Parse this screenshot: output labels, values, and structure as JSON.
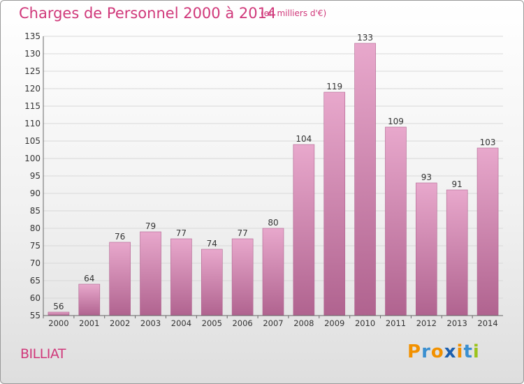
{
  "header": {
    "title": "Charges de Personnel 2000 à 2014",
    "subtitle": "(en milliers d'€)"
  },
  "footer": {
    "commune": "BILLIAT",
    "logo_text": "Proxiti",
    "logo_letters": [
      "P",
      "r",
      "o",
      "x",
      "i",
      "t",
      "i"
    ],
    "logo_colors": [
      "#f29100",
      "#3a8fd0",
      "#f29100",
      "#1c5fae",
      "#f29100",
      "#3a8fd0",
      "#9bc31c"
    ]
  },
  "colors": {
    "accent": "#d0387a",
    "bar_top": "#e8a8cc",
    "bar_bottom": "#b0638f",
    "grid": "#d8d8d8"
  },
  "chart_data": {
    "type": "bar",
    "title": "Charges de Personnel 2000 à 2014",
    "subtitle": "(en milliers d'€)",
    "categories": [
      "2000",
      "2001",
      "2002",
      "2003",
      "2004",
      "2005",
      "2006",
      "2007",
      "2008",
      "2009",
      "2010",
      "2011",
      "2012",
      "2013",
      "2014"
    ],
    "values": [
      56,
      64,
      76,
      79,
      77,
      74,
      77,
      80,
      104,
      119,
      133,
      109,
      93,
      91,
      103
    ],
    "ylim": [
      55,
      135
    ],
    "yticks": [
      55,
      60,
      65,
      70,
      75,
      80,
      85,
      90,
      95,
      100,
      105,
      110,
      115,
      120,
      125,
      130,
      135
    ],
    "grid": true,
    "legend": "none"
  }
}
